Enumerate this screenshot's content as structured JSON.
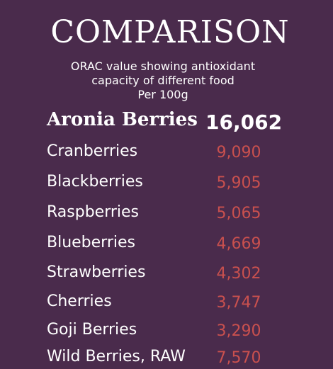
{
  "title": "COMPARISON",
  "subtitle": {
    "line1": "ORAC value showing antioxidant",
    "line2": "capacity of different food",
    "line3": "Per 100g"
  },
  "items": [
    {
      "name": "Aronia Berries",
      "value": "16,062"
    },
    {
      "name": "Cranberries",
      "value": "9,090"
    },
    {
      "name": "Blackberries",
      "value": "5,905"
    },
    {
      "name": "Raspberries",
      "value": "5,065"
    },
    {
      "name": "Blueberries",
      "value": "4,669"
    },
    {
      "name": "Strawberries",
      "value": "4,302"
    },
    {
      "name": "Cherries",
      "value": "3,747"
    },
    {
      "name": "Goji Berries",
      "value": "3,290"
    },
    {
      "name": "Wild Berries, RAW",
      "value": "7,570"
    }
  ],
  "colors": {
    "background": "#4a2b4c",
    "value_red": "#c9504e",
    "text": "#ffffff"
  }
}
